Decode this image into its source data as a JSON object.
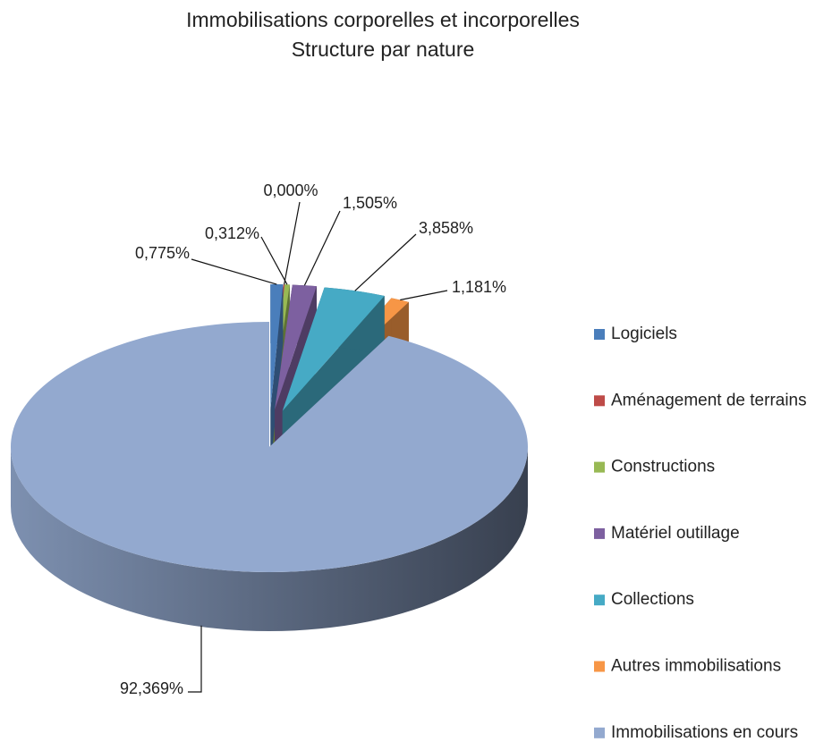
{
  "chart_data": {
    "type": "pie",
    "title": "Immobilisations corporelles et incorporelles",
    "subtitle": "Structure par nature",
    "categories": [
      "Logiciels",
      "Aménagement de terrains",
      "Constructions",
      "Matériel outillage",
      "Collections",
      "Autres immobilisations",
      "Immobilisations en cours"
    ],
    "values": [
      0.775,
      0,
      0.312,
      1.505,
      3.858,
      1.181,
      92.369
    ],
    "value_labels": [
      "0,775%",
      "0,000%",
      "0,312%",
      "1,505%",
      "3,858%",
      "1,181%",
      "92,369%"
    ],
    "colors": [
      "#4a7ebb",
      "#be4b48",
      "#98b954",
      "#7d60a0",
      "#46aac5",
      "#f79646",
      "#93a9cf"
    ],
    "legend": "right"
  }
}
